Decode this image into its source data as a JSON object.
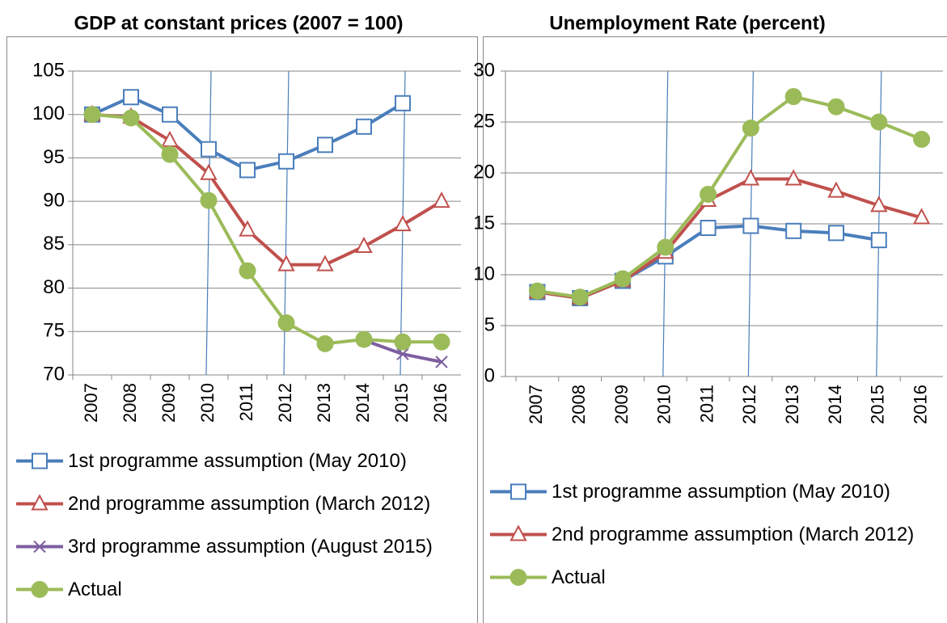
{
  "chart_data": [
    {
      "type": "line",
      "title": "GDP at constant prices (2007 = 100)",
      "categories": [
        "2007",
        "2008",
        "2009",
        "2010",
        "2011",
        "2012",
        "2013",
        "2014",
        "2015",
        "2016"
      ],
      "ylim": [
        70,
        105
      ],
      "yticks": [
        70,
        75,
        80,
        85,
        90,
        95,
        100,
        105
      ],
      "grid": true,
      "vertical_lines_at": [
        "2010",
        "2012",
        "2015"
      ],
      "series": [
        {
          "name": "1st programme assumption (May 2010)",
          "color": "#4a7ebb",
          "marker": "square",
          "values": [
            100,
            102,
            100,
            96,
            93.6,
            94.6,
            96.5,
            98.6,
            101.3,
            null
          ]
        },
        {
          "name": "2nd programme assumption (March 2012)",
          "color": "#c0504d",
          "marker": "triangle",
          "values": [
            100,
            99.7,
            97,
            93.2,
            86.7,
            82.7,
            82.7,
            84.8,
            87.3,
            90
          ]
        },
        {
          "name": "3rd programme assumption (August 2015)",
          "color": "#7d5fa0",
          "marker": "x",
          "values": [
            null,
            null,
            null,
            null,
            null,
            null,
            null,
            74,
            72.4,
            71.5
          ]
        },
        {
          "name": "Actual",
          "color": "#9bbb59",
          "marker": "circle",
          "values": [
            100,
            99.6,
            95.4,
            90.1,
            82,
            76,
            73.6,
            74.1,
            73.8,
            73.8
          ]
        }
      ]
    },
    {
      "type": "line",
      "title": "Unemployment Rate (percent)",
      "categories": [
        "2007",
        "2008",
        "2009",
        "2010",
        "2011",
        "2012",
        "2013",
        "2014",
        "2015",
        "2016"
      ],
      "ylim": [
        0,
        30
      ],
      "yticks": [
        0,
        5,
        10,
        15,
        20,
        25,
        30
      ],
      "grid": true,
      "vertical_lines_at": [
        "2010",
        "2012",
        "2015"
      ],
      "series": [
        {
          "name": "1st programme assumption (May 2010)",
          "color": "#4a7ebb",
          "marker": "square",
          "values": [
            8.3,
            7.7,
            9.4,
            11.8,
            14.6,
            14.8,
            14.3,
            14.1,
            13.4,
            null
          ]
        },
        {
          "name": "2nd programme assumption (March 2012)",
          "color": "#c0504d",
          "marker": "triangle",
          "values": [
            8.3,
            7.7,
            9.4,
            12.2,
            17.3,
            19.4,
            19.4,
            18.2,
            16.8,
            15.6
          ]
        },
        {
          "name": "Actual",
          "color": "#9bbb59",
          "marker": "circle",
          "values": [
            8.4,
            7.8,
            9.6,
            12.7,
            17.9,
            24.4,
            27.5,
            26.5,
            25,
            23.3
          ]
        }
      ]
    }
  ]
}
